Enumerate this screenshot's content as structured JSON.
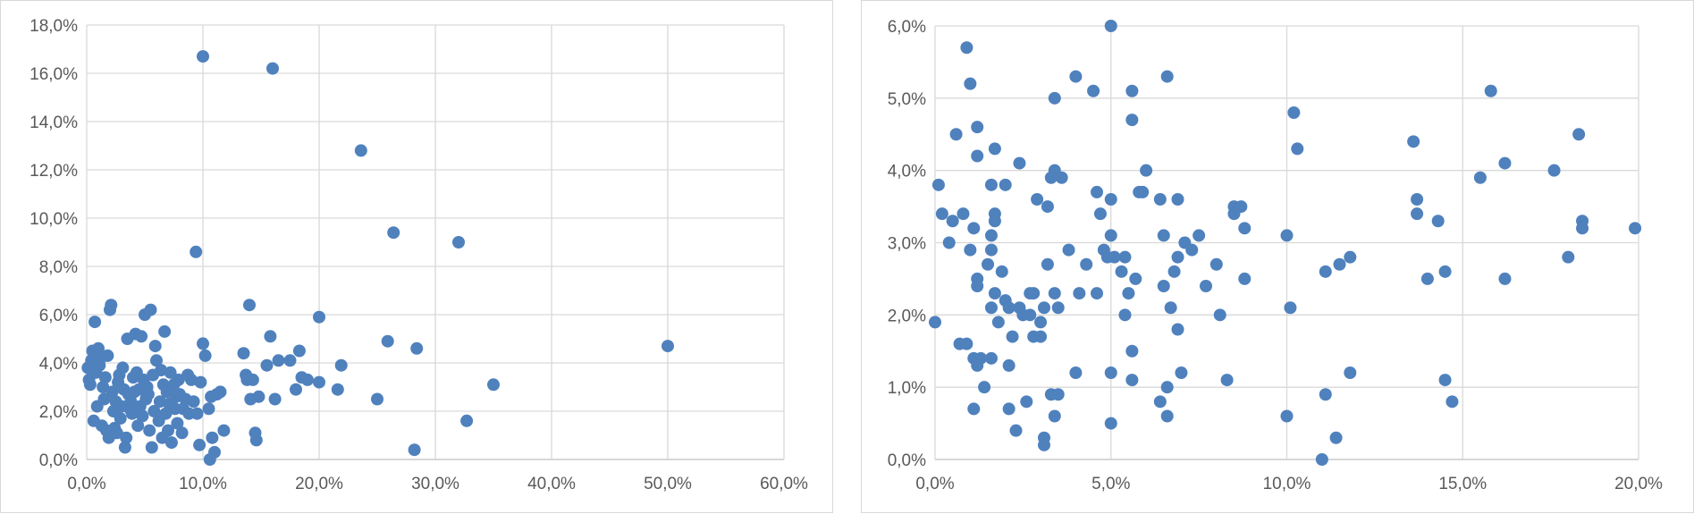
{
  "chart_data": [
    {
      "type": "scatter",
      "title": "",
      "xlabel": "",
      "ylabel": "",
      "xlim": [
        0,
        0.6
      ],
      "ylim": [
        0,
        0.18
      ],
      "grid": true,
      "marker_color": "#4f81bd",
      "x_ticks": [
        "0,0%",
        "10,0%",
        "20,0%",
        "30,0%",
        "40,0%",
        "50,0%",
        "60,0%"
      ],
      "y_ticks": [
        "0,0%",
        "2,0%",
        "4,0%",
        "6,0%",
        "8,0%",
        "10,0%",
        "12,0%",
        "14,0%",
        "16,0%",
        "18,0%"
      ],
      "points": [
        [
          0.001,
          0.038
        ],
        [
          0.002,
          0.033
        ],
        [
          0.003,
          0.031
        ],
        [
          0.004,
          0.041
        ],
        [
          0.005,
          0.045
        ],
        [
          0.006,
          0.016
        ],
        [
          0.007,
          0.057
        ],
        [
          0.008,
          0.036
        ],
        [
          0.009,
          0.022
        ],
        [
          0.01,
          0.046
        ],
        [
          0.011,
          0.039
        ],
        [
          0.012,
          0.042
        ],
        [
          0.013,
          0.014
        ],
        [
          0.014,
          0.03
        ],
        [
          0.015,
          0.025
        ],
        [
          0.016,
          0.034
        ],
        [
          0.017,
          0.012
        ],
        [
          0.018,
          0.043
        ],
        [
          0.019,
          0.009
        ],
        [
          0.02,
          0.062
        ],
        [
          0.021,
          0.064
        ],
        [
          0.022,
          0.028
        ],
        [
          0.023,
          0.02
        ],
        [
          0.024,
          0.013
        ],
        [
          0.025,
          0.024
        ],
        [
          0.026,
          0.011
        ],
        [
          0.027,
          0.032
        ],
        [
          0.028,
          0.035
        ],
        [
          0.029,
          0.017
        ],
        [
          0.03,
          0.022
        ],
        [
          0.031,
          0.038
        ],
        [
          0.032,
          0.029
        ],
        [
          0.033,
          0.005
        ],
        [
          0.034,
          0.009
        ],
        [
          0.035,
          0.05
        ],
        [
          0.036,
          0.027
        ],
        [
          0.037,
          0.021
        ],
        [
          0.038,
          0.024
        ],
        [
          0.039,
          0.019
        ],
        [
          0.04,
          0.034
        ],
        [
          0.041,
          0.028
        ],
        [
          0.042,
          0.052
        ],
        [
          0.043,
          0.036
        ],
        [
          0.044,
          0.014
        ],
        [
          0.045,
          0.029
        ],
        [
          0.046,
          0.022
        ],
        [
          0.047,
          0.051
        ],
        [
          0.048,
          0.018
        ],
        [
          0.049,
          0.033
        ],
        [
          0.05,
          0.06
        ],
        [
          0.051,
          0.025
        ],
        [
          0.052,
          0.03
        ],
        [
          0.053,
          0.027
        ],
        [
          0.054,
          0.012
        ],
        [
          0.055,
          0.062
        ],
        [
          0.056,
          0.005
        ],
        [
          0.057,
          0.035
        ],
        [
          0.058,
          0.02
        ],
        [
          0.059,
          0.047
        ],
        [
          0.06,
          0.041
        ],
        [
          0.062,
          0.016
        ],
        [
          0.063,
          0.024
        ],
        [
          0.064,
          0.037
        ],
        [
          0.065,
          0.009
        ],
        [
          0.066,
          0.031
        ],
        [
          0.067,
          0.053
        ],
        [
          0.068,
          0.019
        ],
        [
          0.069,
          0.028
        ],
        [
          0.07,
          0.012
        ],
        [
          0.071,
          0.023
        ],
        [
          0.072,
          0.036
        ],
        [
          0.073,
          0.007
        ],
        [
          0.074,
          0.029
        ],
        [
          0.075,
          0.031
        ],
        [
          0.076,
          0.021
        ],
        [
          0.077,
          0.026
        ],
        [
          0.078,
          0.015
        ],
        [
          0.079,
          0.033
        ],
        [
          0.08,
          0.027
        ],
        [
          0.082,
          0.011
        ],
        [
          0.083,
          0.021
        ],
        [
          0.085,
          0.025
        ],
        [
          0.087,
          0.035
        ],
        [
          0.088,
          0.019
        ],
        [
          0.09,
          0.033
        ],
        [
          0.092,
          0.024
        ],
        [
          0.094,
          0.086
        ],
        [
          0.095,
          0.019
        ],
        [
          0.097,
          0.006
        ],
        [
          0.098,
          0.032
        ],
        [
          0.1,
          0.167
        ],
        [
          0.1,
          0.048
        ],
        [
          0.102,
          0.043
        ],
        [
          0.105,
          0.021
        ],
        [
          0.106,
          0.0
        ],
        [
          0.107,
          0.026
        ],
        [
          0.108,
          0.009
        ],
        [
          0.11,
          0.003
        ],
        [
          0.112,
          0.027
        ],
        [
          0.115,
          0.028
        ],
        [
          0.118,
          0.012
        ],
        [
          0.135,
          0.044
        ],
        [
          0.137,
          0.035
        ],
        [
          0.138,
          0.033
        ],
        [
          0.14,
          0.064
        ],
        [
          0.141,
          0.025
        ],
        [
          0.143,
          0.033
        ],
        [
          0.145,
          0.011
        ],
        [
          0.146,
          0.008
        ],
        [
          0.148,
          0.026
        ],
        [
          0.155,
          0.039
        ],
        [
          0.158,
          0.051
        ],
        [
          0.16,
          0.162
        ],
        [
          0.162,
          0.025
        ],
        [
          0.165,
          0.041
        ],
        [
          0.175,
          0.041
        ],
        [
          0.18,
          0.029
        ],
        [
          0.183,
          0.045
        ],
        [
          0.185,
          0.034
        ],
        [
          0.19,
          0.033
        ],
        [
          0.2,
          0.059
        ],
        [
          0.2,
          0.032
        ],
        [
          0.216,
          0.029
        ],
        [
          0.219,
          0.039
        ],
        [
          0.236,
          0.128
        ],
        [
          0.25,
          0.025
        ],
        [
          0.259,
          0.049
        ],
        [
          0.264,
          0.094
        ],
        [
          0.282,
          0.004
        ],
        [
          0.284,
          0.046
        ],
        [
          0.32,
          0.09
        ],
        [
          0.327,
          0.016
        ],
        [
          0.35,
          0.031
        ],
        [
          0.5,
          0.047
        ]
      ]
    },
    {
      "type": "scatter",
      "title": "",
      "xlabel": "",
      "ylabel": "",
      "xlim": [
        0,
        0.2
      ],
      "ylim": [
        0,
        0.06
      ],
      "grid": true,
      "marker_color": "#4f81bd",
      "x_ticks": [
        "0,0%",
        "5,0%",
        "10,0%",
        "15,0%",
        "20,0%"
      ],
      "y_ticks": [
        "0,0%",
        "1,0%",
        "2,0%",
        "3,0%",
        "4,0%",
        "5,0%",
        "6,0%"
      ],
      "points": [
        [
          0.0,
          0.019
        ],
        [
          0.001,
          0.038
        ],
        [
          0.002,
          0.034
        ],
        [
          0.004,
          0.03
        ],
        [
          0.005,
          0.033
        ],
        [
          0.006,
          0.045
        ],
        [
          0.007,
          0.016
        ],
        [
          0.008,
          0.034
        ],
        [
          0.009,
          0.057
        ],
        [
          0.009,
          0.016
        ],
        [
          0.01,
          0.052
        ],
        [
          0.01,
          0.029
        ],
        [
          0.011,
          0.007
        ],
        [
          0.011,
          0.032
        ],
        [
          0.011,
          0.014
        ],
        [
          0.012,
          0.046
        ],
        [
          0.012,
          0.042
        ],
        [
          0.012,
          0.025
        ],
        [
          0.012,
          0.024
        ],
        [
          0.012,
          0.013
        ],
        [
          0.013,
          0.014
        ],
        [
          0.014,
          0.01
        ],
        [
          0.015,
          0.027
        ],
        [
          0.016,
          0.038
        ],
        [
          0.016,
          0.031
        ],
        [
          0.016,
          0.029
        ],
        [
          0.016,
          0.021
        ],
        [
          0.016,
          0.014
        ],
        [
          0.017,
          0.043
        ],
        [
          0.017,
          0.034
        ],
        [
          0.017,
          0.033
        ],
        [
          0.017,
          0.023
        ],
        [
          0.018,
          0.019
        ],
        [
          0.019,
          0.026
        ],
        [
          0.02,
          0.038
        ],
        [
          0.02,
          0.022
        ],
        [
          0.021,
          0.021
        ],
        [
          0.021,
          0.013
        ],
        [
          0.021,
          0.007
        ],
        [
          0.022,
          0.017
        ],
        [
          0.023,
          0.004
        ],
        [
          0.024,
          0.041
        ],
        [
          0.024,
          0.021
        ],
        [
          0.025,
          0.02
        ],
        [
          0.026,
          0.008
        ],
        [
          0.027,
          0.023
        ],
        [
          0.027,
          0.02
        ],
        [
          0.028,
          0.023
        ],
        [
          0.028,
          0.017
        ],
        [
          0.029,
          0.036
        ],
        [
          0.03,
          0.019
        ],
        [
          0.03,
          0.017
        ],
        [
          0.031,
          0.003
        ],
        [
          0.031,
          0.002
        ],
        [
          0.031,
          0.021
        ],
        [
          0.032,
          0.035
        ],
        [
          0.032,
          0.027
        ],
        [
          0.033,
          0.039
        ],
        [
          0.033,
          0.009
        ],
        [
          0.034,
          0.05
        ],
        [
          0.034,
          0.04
        ],
        [
          0.034,
          0.023
        ],
        [
          0.034,
          0.006
        ],
        [
          0.035,
          0.021
        ],
        [
          0.035,
          0.009
        ],
        [
          0.036,
          0.039
        ],
        [
          0.038,
          0.029
        ],
        [
          0.04,
          0.053
        ],
        [
          0.04,
          0.012
        ],
        [
          0.041,
          0.023
        ],
        [
          0.043,
          0.027
        ],
        [
          0.045,
          0.051
        ],
        [
          0.046,
          0.037
        ],
        [
          0.046,
          0.023
        ],
        [
          0.047,
          0.034
        ],
        [
          0.048,
          0.029
        ],
        [
          0.049,
          0.028
        ],
        [
          0.05,
          0.06
        ],
        [
          0.05,
          0.036
        ],
        [
          0.05,
          0.031
        ],
        [
          0.05,
          0.012
        ],
        [
          0.05,
          0.005
        ],
        [
          0.051,
          0.028
        ],
        [
          0.053,
          0.026
        ],
        [
          0.054,
          0.028
        ],
        [
          0.054,
          0.02
        ],
        [
          0.055,
          0.023
        ],
        [
          0.056,
          0.051
        ],
        [
          0.056,
          0.047
        ],
        [
          0.056,
          0.015
        ],
        [
          0.056,
          0.011
        ],
        [
          0.057,
          0.025
        ],
        [
          0.058,
          0.037
        ],
        [
          0.059,
          0.037
        ],
        [
          0.06,
          0.04
        ],
        [
          0.064,
          0.036
        ],
        [
          0.064,
          0.008
        ],
        [
          0.065,
          0.031
        ],
        [
          0.065,
          0.024
        ],
        [
          0.066,
          0.053
        ],
        [
          0.066,
          0.01
        ],
        [
          0.066,
          0.006
        ],
        [
          0.067,
          0.021
        ],
        [
          0.068,
          0.026
        ],
        [
          0.069,
          0.036
        ],
        [
          0.069,
          0.028
        ],
        [
          0.069,
          0.018
        ],
        [
          0.07,
          0.012
        ],
        [
          0.071,
          0.03
        ],
        [
          0.073,
          0.029
        ],
        [
          0.075,
          0.031
        ],
        [
          0.077,
          0.024
        ],
        [
          0.08,
          0.027
        ],
        [
          0.081,
          0.02
        ],
        [
          0.083,
          0.011
        ],
        [
          0.085,
          0.035
        ],
        [
          0.085,
          0.034
        ],
        [
          0.087,
          0.035
        ],
        [
          0.088,
          0.032
        ],
        [
          0.088,
          0.025
        ],
        [
          0.1,
          0.031
        ],
        [
          0.1,
          0.006
        ],
        [
          0.101,
          0.021
        ],
        [
          0.102,
          0.048
        ],
        [
          0.103,
          0.043
        ],
        [
          0.11,
          0.0
        ],
        [
          0.111,
          0.026
        ],
        [
          0.111,
          0.009
        ],
        [
          0.114,
          0.003
        ],
        [
          0.115,
          0.027
        ],
        [
          0.118,
          0.028
        ],
        [
          0.118,
          0.012
        ],
        [
          0.136,
          0.044
        ],
        [
          0.137,
          0.036
        ],
        [
          0.137,
          0.034
        ],
        [
          0.14,
          0.025
        ],
        [
          0.143,
          0.033
        ],
        [
          0.145,
          0.026
        ],
        [
          0.145,
          0.011
        ],
        [
          0.147,
          0.008
        ],
        [
          0.155,
          0.039
        ],
        [
          0.158,
          0.051
        ],
        [
          0.162,
          0.041
        ],
        [
          0.162,
          0.025
        ],
        [
          0.176,
          0.04
        ],
        [
          0.18,
          0.028
        ],
        [
          0.183,
          0.045
        ],
        [
          0.184,
          0.033
        ],
        [
          0.184,
          0.032
        ],
        [
          0.199,
          0.032
        ]
      ]
    }
  ]
}
